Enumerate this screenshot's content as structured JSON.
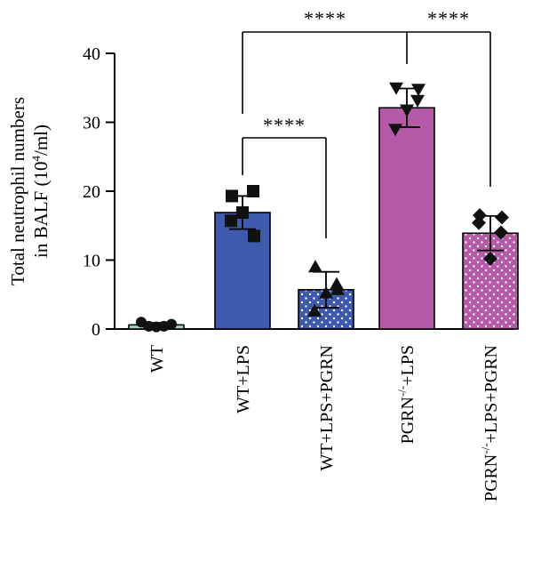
{
  "chart_data": {
    "type": "bar",
    "title": "",
    "xlabel": "",
    "ylabel_line1": "Total neutrophil numbers",
    "ylabel_line2_prefix": "in BALF (10",
    "ylabel_line2_sup": "4",
    "ylabel_line2_suffix": "/ml)",
    "ylim": [
      0,
      40
    ],
    "yticks": [
      "0",
      "10",
      "20",
      "30",
      "40"
    ],
    "categories": [
      {
        "name": "WT",
        "base": "WT",
        "sup": "",
        "rest": ""
      },
      {
        "name": "WT+LPS",
        "base": "WT+LPS",
        "sup": "",
        "rest": ""
      },
      {
        "name": "WT+LPS+PGRN",
        "base": "WT+LPS+PGRN",
        "sup": "",
        "rest": ""
      },
      {
        "name": "PGRN-/-+LPS",
        "base": "PGRN",
        "sup": "-/-",
        "rest": "+LPS"
      },
      {
        "name": "PGRN-/-+LPS+PGRN",
        "base": "PGRN",
        "sup": "-/-",
        "rest": "+LPS+PGRN"
      }
    ],
    "values": [
      0.6,
      16.9,
      5.7,
      32.1,
      13.9
    ],
    "errors": [
      0.3,
      2.4,
      2.6,
      2.8,
      2.5
    ],
    "points": [
      [
        1.0,
        0.4,
        0.3,
        0.4,
        0.7
      ],
      [
        19.3,
        20.0,
        15.7,
        16.9,
        13.5
      ],
      [
        9.0,
        6.5,
        2.6,
        5.2,
        5.7
      ],
      [
        35.0,
        33.2,
        29.0,
        31.8,
        34.8
      ],
      [
        16.5,
        14.0,
        15.4,
        10.2,
        16.2
      ]
    ],
    "markers": [
      "circle",
      "square",
      "triangle-up",
      "triangle-down",
      "diamond"
    ],
    "colors": [
      "#9fd8c8",
      "#3e5aac",
      "#3e5aac",
      "#b55aa6",
      "#b55aa6"
    ],
    "patterned": [
      false,
      false,
      true,
      false,
      true
    ],
    "significance": [
      {
        "label": "****",
        "comparison": "WT+LPS vs WT+LPS+PGRN"
      },
      {
        "label": "****",
        "comparison": "WT+LPS vs PGRN-/-+LPS"
      },
      {
        "label": "****",
        "comparison": "PGRN-/-+LPS vs PGRN-/-+LPS+PGRN"
      }
    ]
  }
}
